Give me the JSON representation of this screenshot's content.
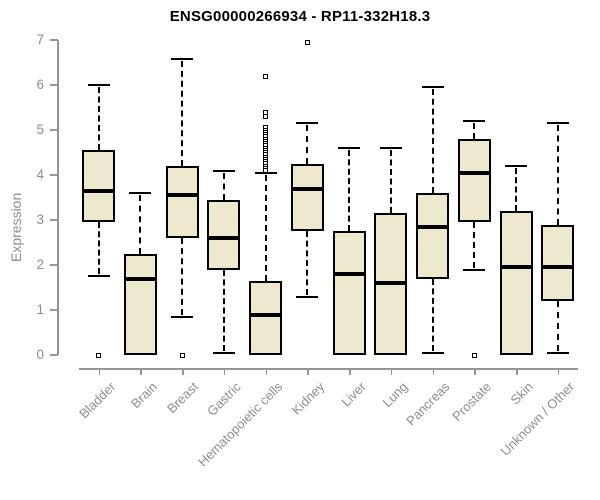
{
  "chart_data": {
    "type": "boxplot",
    "title": "ENSG00000266934 - RP11-332H18.3",
    "ylabel": "Expression",
    "xlabel": "",
    "ylim": [
      0,
      7
    ],
    "y_ticks": [
      0,
      1,
      2,
      3,
      4,
      5,
      6,
      7
    ],
    "grid": false,
    "x_label_rotation_deg": 45,
    "categories": [
      "Bladder",
      "Brain",
      "Breast",
      "Gastric",
      "Hematopoietic cells",
      "Kidney",
      "Liver",
      "Lung",
      "Pancreas",
      "Prostate",
      "Skin",
      "Unknown / Other"
    ],
    "boxes": [
      {
        "category": "Bladder",
        "whisker_low": 1.75,
        "q1": 2.95,
        "median": 3.65,
        "q3": 4.55,
        "whisker_high": 6.0,
        "outliers": [
          0
        ]
      },
      {
        "category": "Brain",
        "whisker_low": 0,
        "q1": 0,
        "median": 1.7,
        "q3": 2.25,
        "whisker_high": 3.6,
        "outliers": []
      },
      {
        "category": "Breast",
        "whisker_low": 0.85,
        "q1": 2.6,
        "median": 3.55,
        "q3": 4.2,
        "whisker_high": 6.58,
        "outliers": [
          0
        ]
      },
      {
        "category": "Gastric",
        "whisker_low": 0.05,
        "q1": 1.9,
        "median": 2.6,
        "q3": 3.45,
        "whisker_high": 4.1,
        "outliers": []
      },
      {
        "category": "Hematopoietic cells",
        "whisker_low": 0,
        "q1": 0,
        "median": 0.9,
        "q3": 1.65,
        "whisker_high": 4.05,
        "outliers": [
          6.2,
          5.4,
          5.3,
          5.05,
          5.0,
          4.95,
          4.9,
          4.85,
          4.8,
          4.75,
          4.7,
          4.65,
          4.6,
          4.55,
          4.5,
          4.45,
          4.4,
          4.35,
          4.3,
          4.25,
          4.2,
          4.15,
          4.1
        ]
      },
      {
        "category": "Kidney",
        "whisker_low": 1.3,
        "q1": 2.75,
        "median": 3.7,
        "q3": 4.25,
        "whisker_high": 5.15,
        "outliers": [
          6.95
        ]
      },
      {
        "category": "Liver",
        "whisker_low": 0,
        "q1": 0,
        "median": 1.8,
        "q3": 2.75,
        "whisker_high": 4.6,
        "outliers": []
      },
      {
        "category": "Lung",
        "whisker_low": 0,
        "q1": 0,
        "median": 1.6,
        "q3": 3.15,
        "whisker_high": 4.6,
        "outliers": []
      },
      {
        "category": "Pancreas",
        "whisker_low": 0.05,
        "q1": 1.7,
        "median": 2.85,
        "q3": 3.6,
        "whisker_high": 5.95,
        "outliers": []
      },
      {
        "category": "Prostate",
        "whisker_low": 1.9,
        "q1": 2.95,
        "median": 4.05,
        "q3": 4.8,
        "whisker_high": 5.2,
        "outliers": [
          0
        ]
      },
      {
        "category": "Skin",
        "whisker_low": 0,
        "q1": 0,
        "median": 1.95,
        "q3": 3.2,
        "whisker_high": 4.2,
        "outliers": []
      },
      {
        "category": "Unknown / Other",
        "whisker_low": 0.05,
        "q1": 1.2,
        "median": 1.95,
        "q3": 2.9,
        "whisker_high": 5.15,
        "outliers": []
      }
    ],
    "colors": {
      "box_fill": "#ede8ce",
      "box_border": "#000000",
      "median": "#000000",
      "whisker": "#000000",
      "axis": "#969696",
      "tick_label": "#8e8e8e",
      "title": "#000000",
      "background": "#ffffff"
    }
  }
}
